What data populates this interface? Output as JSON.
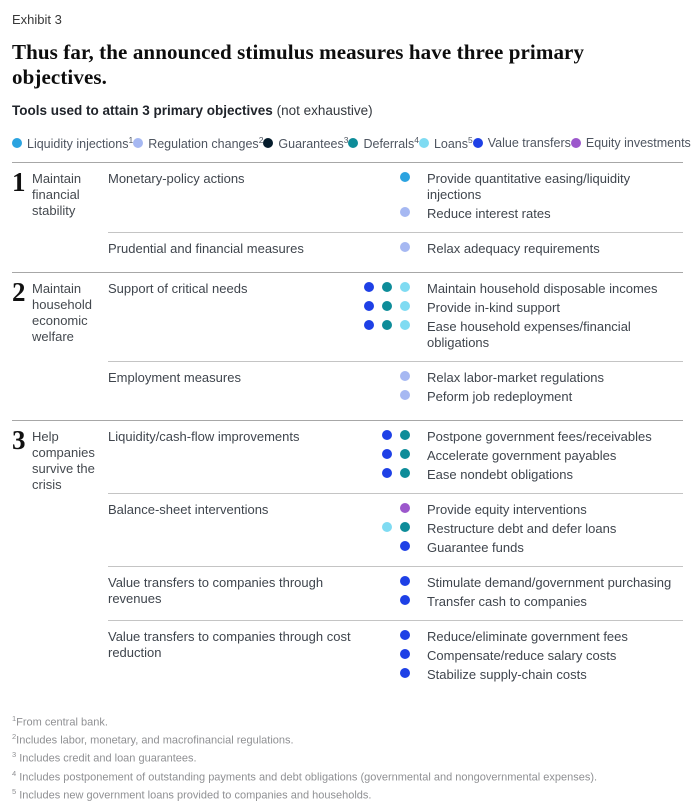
{
  "exhibit_label": "Exhibit 3",
  "title": "Thus far, the announced stimulus measures have three primary objectives.",
  "subtitle": {
    "bold": "Tools used to attain 3 primary objectives",
    "note": " (not exhaustive)"
  },
  "colors": {
    "liquidity": "#2BA3E0",
    "regulation": "#A6B8F2",
    "guarantees": "#051C2C",
    "deferrals": "#0D8C99",
    "loans": "#7FDBF2",
    "value_transfers": "#1E40E6",
    "equity": "#9C57CC"
  },
  "legend": [
    {
      "label": "Liquidity injections",
      "sup": "1",
      "color": "liquidity"
    },
    {
      "label": "Regulation changes",
      "sup": "2",
      "color": "regulation"
    },
    {
      "label": "Guarantees",
      "sup": "3",
      "color": "guarantees"
    },
    {
      "label": "Deferrals",
      "sup": "4",
      "color": "deferrals"
    },
    {
      "label": "Loans",
      "sup": "5",
      "color": "loans"
    },
    {
      "label": "Value transfers",
      "sup": "",
      "color": "value_transfers"
    },
    {
      "label": "Equity investments",
      "sup": "",
      "color": "equity"
    }
  ],
  "sections": [
    {
      "number": "1",
      "objective": "Maintain financial stability",
      "rows": [
        {
          "measure": "Monetary-policy actions",
          "items": [
            {
              "dots": [
                "liquidity"
              ],
              "text": "Provide quantitative easing/liquidity injections"
            },
            {
              "dots": [
                "regulation"
              ],
              "text": "Reduce interest rates"
            }
          ]
        },
        {
          "measure": "Prudential and financial measures",
          "items": [
            {
              "dots": [
                "regulation"
              ],
              "text": "Relax adequacy requirements"
            }
          ]
        }
      ]
    },
    {
      "number": "2",
      "objective": "Maintain household economic welfare",
      "rows": [
        {
          "measure": "Support of critical needs",
          "items": [
            {
              "dots": [
                "value_transfers",
                "deferrals",
                "loans"
              ],
              "text": "Maintain household disposable incomes"
            },
            {
              "dots": [
                "value_transfers",
                "deferrals",
                "loans"
              ],
              "text": "Provide in-kind support"
            },
            {
              "dots": [
                "value_transfers",
                "deferrals",
                "loans"
              ],
              "text": "Ease household expenses/financial obligations"
            }
          ]
        },
        {
          "measure": "Employment measures",
          "items": [
            {
              "dots": [
                "regulation"
              ],
              "text": "Relax labor-market regulations"
            },
            {
              "dots": [
                "regulation"
              ],
              "text": "Peform job redeployment"
            }
          ]
        }
      ]
    },
    {
      "number": "3",
      "objective": "Help companies survive the crisis",
      "rows": [
        {
          "measure": "Liquidity/cash-flow improvements",
          "items": [
            {
              "dots": [
                "value_transfers",
                "deferrals"
              ],
              "text": "Postpone government fees/receivables"
            },
            {
              "dots": [
                "value_transfers",
                "deferrals"
              ],
              "text": "Accelerate government payables"
            },
            {
              "dots": [
                "value_transfers",
                "deferrals"
              ],
              "text": "Ease nondebt obligations"
            }
          ]
        },
        {
          "measure": "Balance-sheet interventions",
          "items": [
            {
              "dots": [
                "equity"
              ],
              "text": "Provide equity interventions"
            },
            {
              "dots": [
                "loans",
                "deferrals"
              ],
              "text": "Restructure debt and defer loans"
            },
            {
              "dots": [
                "value_transfers"
              ],
              "text": "Guarantee funds"
            }
          ]
        },
        {
          "measure": "Value transfers to companies through revenues",
          "items": [
            {
              "dots": [
                "value_transfers"
              ],
              "text": "Stimulate demand/government purchasing"
            },
            {
              "dots": [
                "value_transfers"
              ],
              "text": "Transfer cash to companies"
            }
          ]
        },
        {
          "measure": "Value transfers to companies through cost reduction",
          "items": [
            {
              "dots": [
                "value_transfers"
              ],
              "text": "Reduce/eliminate government fees"
            },
            {
              "dots": [
                "value_transfers"
              ],
              "text": "Compensate/reduce salary costs"
            },
            {
              "dots": [
                "value_transfers"
              ],
              "text": "Stabilize supply-chain costs"
            }
          ]
        }
      ]
    }
  ],
  "footnotes": [
    {
      "sup": "1",
      "text": "From central bank."
    },
    {
      "sup": "2",
      "text": "Includes labor, monetary, and macrofinancial regulations."
    },
    {
      "sup": "3",
      "text": " Includes credit and loan guarantees."
    },
    {
      "sup": "4",
      "text": " Includes postponement of outstanding payments and debt obligations (governmental and nongovernmental expenses)."
    },
    {
      "sup": "5",
      "text": " Includes new government loans provided to companies and households."
    }
  ]
}
